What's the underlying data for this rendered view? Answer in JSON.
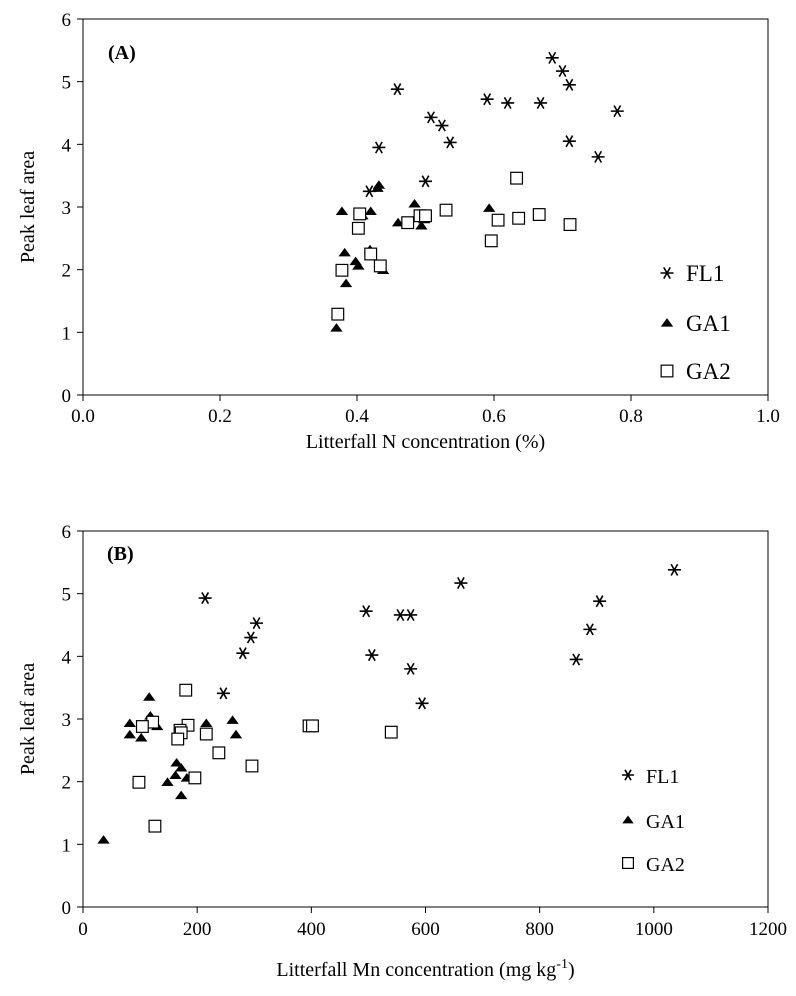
{
  "chart_data": [
    {
      "type": "scatter",
      "panel_label": "(A)",
      "xlabel": "Litterfall N concentration (%)",
      "ylabel": "Peak leaf area",
      "xlim": [
        0,
        1
      ],
      "ylim": [
        0,
        6
      ],
      "x_ticks": [
        "0.0",
        "0.2",
        "0.4",
        "0.6",
        "0.8",
        "1.0"
      ],
      "y_ticks": [
        "0",
        "1",
        "2",
        "3",
        "4",
        "5",
        "6"
      ],
      "legend_position": "bottom-right",
      "series": [
        {
          "name": "FL1",
          "marker": "asterisk",
          "points": [
            [
              0.685,
              5.38
            ],
            [
              0.7,
              5.17
            ],
            [
              0.71,
              4.95
            ],
            [
              0.459,
              4.88
            ],
            [
              0.59,
              4.72
            ],
            [
              0.62,
              4.66
            ],
            [
              0.668,
              4.66
            ],
            [
              0.78,
              4.53
            ],
            [
              0.508,
              4.43
            ],
            [
              0.524,
              4.3
            ],
            [
              0.71,
              4.05
            ],
            [
              0.536,
              4.03
            ],
            [
              0.432,
              3.95
            ],
            [
              0.752,
              3.8
            ],
            [
              0.5,
              3.41
            ],
            [
              0.418,
              3.25
            ]
          ]
        },
        {
          "name": "GA1",
          "marker": "filled-triangle",
          "points": [
            [
              0.432,
              3.35
            ],
            [
              0.43,
              3.3
            ],
            [
              0.484,
              3.05
            ],
            [
              0.593,
              2.98
            ],
            [
              0.378,
              2.93
            ],
            [
              0.42,
              2.93
            ],
            [
              0.408,
              2.86
            ],
            [
              0.498,
              2.8
            ],
            [
              0.46,
              2.75
            ],
            [
              0.494,
              2.7
            ],
            [
              0.419,
              2.32
            ],
            [
              0.382,
              2.27
            ],
            [
              0.398,
              2.13
            ],
            [
              0.402,
              2.06
            ],
            [
              0.438,
              1.99
            ],
            [
              0.384,
              1.78
            ],
            [
              0.37,
              1.07
            ]
          ]
        },
        {
          "name": "GA2",
          "marker": "open-square",
          "points": [
            [
              0.633,
              3.46
            ],
            [
              0.53,
              2.95
            ],
            [
              0.404,
              2.89
            ],
            [
              0.492,
              2.86
            ],
            [
              0.5,
              2.86
            ],
            [
              0.666,
              2.88
            ],
            [
              0.636,
              2.82
            ],
            [
              0.606,
              2.79
            ],
            [
              0.474,
              2.75
            ],
            [
              0.711,
              2.72
            ],
            [
              0.402,
              2.66
            ],
            [
              0.596,
              2.46
            ],
            [
              0.42,
              2.25
            ],
            [
              0.434,
              2.06
            ],
            [
              0.378,
              1.99
            ],
            [
              0.372,
              1.29
            ]
          ]
        }
      ]
    },
    {
      "type": "scatter",
      "panel_label": "(B)",
      "xlabel": "Litterfall Mn concentration (mg kg",
      "xlabel_sup": "-1",
      "xlabel_end": ")",
      "ylabel": "Peak leaf area",
      "xlim": [
        0,
        1200
      ],
      "ylim": [
        0,
        6
      ],
      "x_ticks": [
        "0",
        "200",
        "400",
        "600",
        "800",
        "1000",
        "1200"
      ],
      "y_ticks": [
        "0",
        "1",
        "2",
        "3",
        "4",
        "5",
        "6"
      ],
      "legend_position": "bottom-right",
      "series": [
        {
          "name": "FL1",
          "marker": "asterisk",
          "points": [
            [
              1036,
              5.38
            ],
            [
              662,
              5.17
            ],
            [
              214,
              4.93
            ],
            [
              905,
              4.88
            ],
            [
              496,
              4.72
            ],
            [
              556,
              4.66
            ],
            [
              574,
              4.66
            ],
            [
              304,
              4.53
            ],
            [
              888,
              4.43
            ],
            [
              294,
              4.3
            ],
            [
              280,
              4.05
            ],
            [
              506,
              4.02
            ],
            [
              864,
              3.95
            ],
            [
              574,
              3.8
            ],
            [
              246,
              3.41
            ],
            [
              594,
              3.25
            ]
          ]
        },
        {
          "name": "GA1",
          "marker": "filled-triangle",
          "points": [
            [
              116,
              3.35
            ],
            [
              118,
              3.05
            ],
            [
              262,
              2.98
            ],
            [
              82,
              2.93
            ],
            [
              216,
              2.93
            ],
            [
              130,
              2.88
            ],
            [
              82,
              2.75
            ],
            [
              268,
              2.75
            ],
            [
              102,
              2.7
            ],
            [
              164,
              2.3
            ],
            [
              172,
              2.22
            ],
            [
              162,
              2.1
            ],
            [
              182,
              2.06
            ],
            [
              148,
              1.99
            ],
            [
              172,
              1.78
            ],
            [
              36,
              1.07
            ]
          ]
        },
        {
          "name": "GA2",
          "marker": "open-square",
          "points": [
            [
              180,
              3.46
            ],
            [
              122,
              2.95
            ],
            [
              184,
              2.9
            ],
            [
              104,
              2.88
            ],
            [
              396,
              2.89
            ],
            [
              402,
              2.89
            ],
            [
              170,
              2.82
            ],
            [
              172,
              2.78
            ],
            [
              216,
              2.76
            ],
            [
              166,
              2.68
            ],
            [
              540,
              2.79
            ],
            [
              238,
              2.46
            ],
            [
              296,
              2.25
            ],
            [
              196,
              2.06
            ],
            [
              98,
              1.99
            ],
            [
              126,
              1.29
            ]
          ]
        }
      ]
    }
  ]
}
